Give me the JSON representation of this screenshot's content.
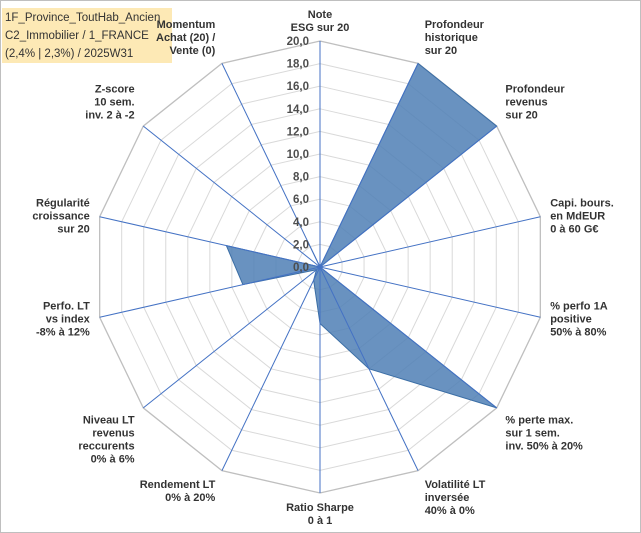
{
  "caption": {
    "line1": "1F_Province_ToutHab_Ancien",
    "line2": "C2_Immobilier / 1_FRANCE",
    "line3": "(2,4% | 2,3%) / 2025W31"
  },
  "colors": {
    "fill": "#4f7fb5",
    "stroke": "#3b6ea5",
    "grid": "#d9d9d9",
    "spoke": "#4472c4"
  },
  "chart_data": {
    "type": "radar",
    "title": "",
    "rmax": 20,
    "ticks": [
      "0,0",
      "2,0",
      "4,0",
      "6,0",
      "8,0",
      "10,0",
      "12,0",
      "14,0",
      "16,0",
      "18,0",
      "20,0"
    ],
    "axes": [
      {
        "label": [
          "Note",
          "ESG sur 20"
        ],
        "value": 0
      },
      {
        "label": [
          "Profondeur",
          "historique",
          "sur 20"
        ],
        "value": 20
      },
      {
        "label": [
          "Profondeur",
          "revenus",
          "sur 20"
        ],
        "value": 20
      },
      {
        "label": [
          "Capi. bours.",
          "en MdEUR",
          "0 à 60 G€"
        ],
        "value": 0
      },
      {
        "label": [
          "% perfo 1A",
          "positive",
          "50% à 80%"
        ],
        "value": 0
      },
      {
        "label": [
          "% perte max.",
          "sur 1 sem.",
          "inv. 50% à 20%"
        ],
        "value": 20
      },
      {
        "label": [
          "Volatilité LT",
          "inversée",
          "40% à 0%"
        ],
        "value": 10
      },
      {
        "label": [
          "Ratio Sharpe",
          "0 à 1"
        ],
        "value": 5
      },
      {
        "label": [
          "Rendement LT",
          "0% à 20%"
        ],
        "value": 1.3
      },
      {
        "label": [
          "Niveau LT",
          "revenus",
          "reccurents",
          "0% à 6%"
        ],
        "value": 0.4
      },
      {
        "label": [
          "Perfo. LT",
          "vs index",
          "-8% à 12%"
        ],
        "value": 7
      },
      {
        "label": [
          "Régularité",
          "croissance",
          "sur 20"
        ],
        "value": 8.5
      },
      {
        "label": [
          "Z-score",
          "10 sem.",
          "inv. 2 à -2"
        ],
        "value": 0
      },
      {
        "label": [
          "Momentum",
          "Achat (20) /",
          "Vente (0)"
        ],
        "value": 2.6
      }
    ]
  }
}
